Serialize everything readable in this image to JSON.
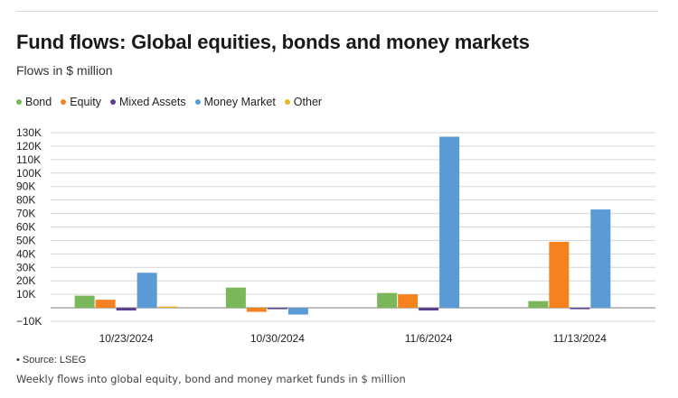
{
  "header": {
    "title": "Fund flows: Global equities, bonds and money markets",
    "subtitle": "Flows in $ million"
  },
  "footer": {
    "source": "• Source: LSEG",
    "caption": "Weekly flows into global equity, bond and money market funds in $ million"
  },
  "chart_data": {
    "type": "bar",
    "categories": [
      "10/23/2024",
      "10/30/2024",
      "11/6/2024",
      "11/13/2024"
    ],
    "series": [
      {
        "name": "Bond",
        "color": "#7ab65a",
        "values": [
          9000,
          15000,
          11000,
          5000
        ]
      },
      {
        "name": "Equity",
        "color": "#f5821f",
        "values": [
          6000,
          -3000,
          10000,
          49000
        ]
      },
      {
        "name": "Mixed Assets",
        "color": "#5b3f8f",
        "values": [
          -2000,
          -1000,
          -2000,
          -1000
        ]
      },
      {
        "name": "Money Market",
        "color": "#5b9bd5",
        "values": [
          26000,
          -5000,
          127000,
          73000
        ]
      },
      {
        "name": "Other",
        "color": "#f0b429",
        "values": [
          500,
          0,
          0,
          0
        ]
      }
    ],
    "ylim": [
      -10000,
      130000
    ],
    "yticks": [
      -10000,
      10000,
      20000,
      30000,
      40000,
      50000,
      60000,
      70000,
      80000,
      90000,
      100000,
      110000,
      120000,
      130000
    ],
    "ytick_labels": [
      "−10K",
      "10K",
      "20K",
      "30K",
      "40K",
      "50K",
      "60K",
      "70K",
      "80K",
      "90K",
      "100K",
      "110K",
      "120K",
      "130K"
    ],
    "grid": true,
    "legend_position": "top-left"
  }
}
